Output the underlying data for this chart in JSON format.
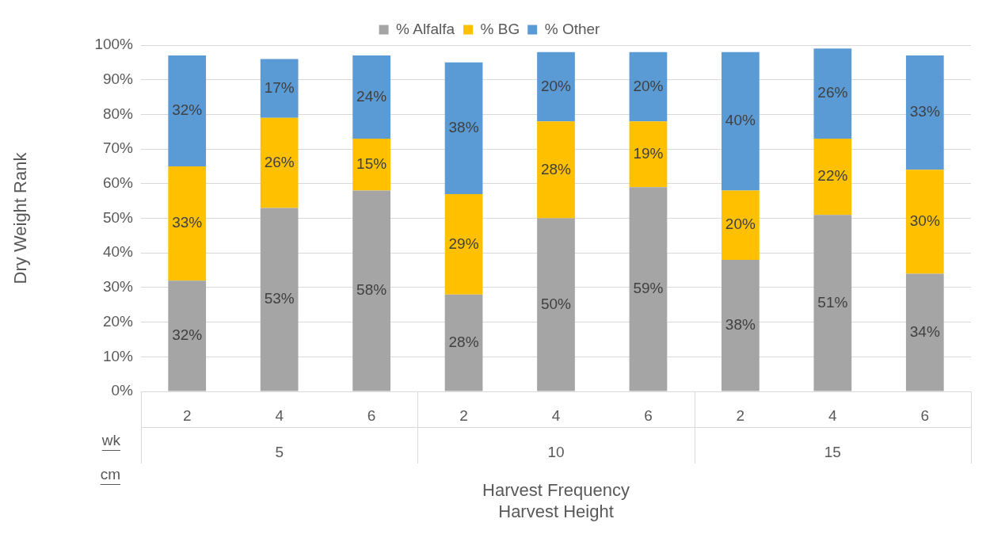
{
  "chart_data": {
    "type": "bar",
    "stacked": true,
    "xlabel": "Harvest Frequency\nHarvest Height",
    "ylabel": "Dry Weight Rank",
    "categories": [
      "2",
      "4",
      "6",
      "2",
      "4",
      "6",
      "2",
      "4",
      "6"
    ],
    "series": [
      {
        "name": "% Alfalfa",
        "color": "#a5a5a5",
        "values": [
          32,
          53,
          58,
          28,
          50,
          59,
          38,
          51,
          34
        ],
        "value_labels": [
          "32%",
          "53%",
          "58%",
          "28%",
          "50%",
          "59%",
          "38%",
          "51%",
          "34%"
        ]
      },
      {
        "name": "% BG",
        "color": "#ffc000",
        "values": [
          33,
          26,
          15,
          29,
          28,
          19,
          20,
          22,
          30
        ],
        "value_labels": [
          "33%",
          "26%",
          "15%",
          "29%",
          "28%",
          "19%",
          "20%",
          "22%",
          "30%"
        ]
      },
      {
        "name": "% Other",
        "color": "#5b9bd5",
        "values": [
          32,
          17,
          24,
          38,
          20,
          20,
          40,
          26,
          33
        ],
        "value_labels": [
          "32%",
          "17%",
          "24%",
          "38%",
          "20%",
          "20%",
          "40%",
          "26%",
          "33%"
        ]
      }
    ],
    "ylim": [
      0,
      100
    ],
    "yticks": [
      {
        "value": 0,
        "label": "0%"
      },
      {
        "value": 10,
        "label": "10%"
      },
      {
        "value": 20,
        "label": "20%"
      },
      {
        "value": 30,
        "label": "30%"
      },
      {
        "value": 40,
        "label": "40%"
      },
      {
        "value": 50,
        "label": "50%"
      },
      {
        "value": 60,
        "label": "60%"
      },
      {
        "value": 70,
        "label": "70%"
      },
      {
        "value": 80,
        "label": "80%"
      },
      {
        "value": 90,
        "label": "90%"
      },
      {
        "value": 100,
        "label": "100%"
      }
    ],
    "annotations": [
      "wk",
      "cm",
      "5",
      "10",
      "15"
    ],
    "grid": "y",
    "legend": "top"
  }
}
